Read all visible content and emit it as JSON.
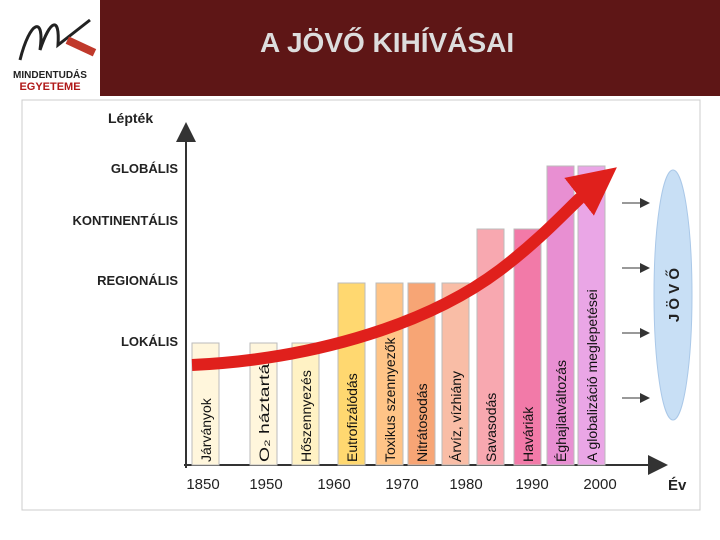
{
  "header": {
    "title": "A JÖVŐ KIHÍVÁSAI"
  },
  "logo": {
    "line1": "MINDENTUDÁS",
    "line2": "EGYETEME"
  },
  "diagram": {
    "y_axis_label": "Lépték",
    "levels": [
      "GLOBÁLIS",
      "KONTINENTÁLIS",
      "REGIONÁLIS",
      "LOKÁLIS"
    ],
    "x_axis_label": "Év",
    "years": [
      "1850",
      "1950",
      "1960",
      "1970",
      "1980",
      "1990",
      "2000"
    ],
    "bars": [
      "Járványok",
      "O₂ háztartás",
      "Hőszennyezés",
      "Eutrofizálódás",
      "Toxikus szennyezők",
      "Nitrátosodás",
      "Árvíz, vízhiány",
      "Savasodás",
      "Haváriák",
      "Éghajlatváltozás",
      "A globalizáció meglepetései"
    ],
    "future_label": "J Ö V Ő"
  }
}
